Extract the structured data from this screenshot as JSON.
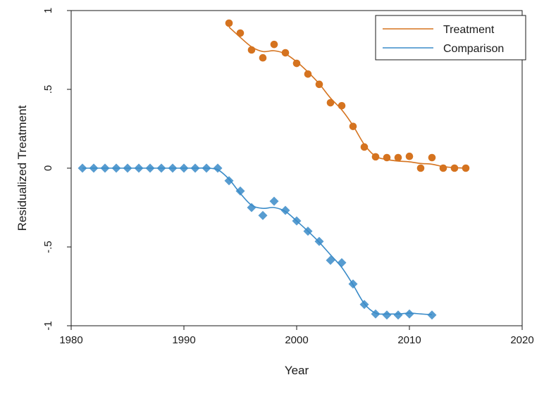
{
  "chart_data": {
    "type": "scatter",
    "xlabel": "Year",
    "ylabel": "Residualized Treatment",
    "xlim": [
      1980,
      2020
    ],
    "ylim": [
      -1,
      1
    ],
    "xticks": [
      "1980",
      "1990",
      "2000",
      "2010",
      "2020"
    ],
    "yticks": [
      "1",
      ".5",
      "0",
      "-.5",
      "-1"
    ],
    "legend": {
      "position": "top-right",
      "entries": [
        "Treatment",
        "Comparison"
      ]
    },
    "series": [
      {
        "name": "Treatment",
        "color": "#d5731f",
        "marker": "circle",
        "points": [
          [
            1994,
            0.92
          ],
          [
            1995,
            0.857
          ],
          [
            1996,
            0.75
          ],
          [
            1997,
            0.7
          ],
          [
            1998,
            0.785
          ],
          [
            1999,
            0.732
          ],
          [
            2000,
            0.665
          ],
          [
            2001,
            0.597
          ],
          [
            2002,
            0.532
          ],
          [
            2003,
            0.415
          ],
          [
            2004,
            0.396
          ],
          [
            2005,
            0.265
          ],
          [
            2006,
            0.134
          ],
          [
            2007,
            0.072
          ],
          [
            2008,
            0.067
          ],
          [
            2009,
            0.067
          ],
          [
            2010,
            0.075
          ],
          [
            2011,
            0.0
          ],
          [
            2012,
            0.067
          ],
          [
            2013,
            0.0
          ],
          [
            2014,
            0.0
          ],
          [
            2015,
            0.0
          ]
        ],
        "fit": [
          [
            1994,
            0.895
          ],
          [
            1995,
            0.83
          ],
          [
            1996,
            0.77
          ],
          [
            1997,
            0.74
          ],
          [
            1998,
            0.745
          ],
          [
            1999,
            0.725
          ],
          [
            2000,
            0.675
          ],
          [
            2001,
            0.61
          ],
          [
            2002,
            0.535
          ],
          [
            2003,
            0.445
          ],
          [
            2004,
            0.37
          ],
          [
            2005,
            0.27
          ],
          [
            2006,
            0.15
          ],
          [
            2007,
            0.075
          ],
          [
            2008,
            0.055
          ],
          [
            2009,
            0.045
          ],
          [
            2010,
            0.04
          ],
          [
            2011,
            0.03
          ],
          [
            2012,
            0.025
          ],
          [
            2013,
            0.01
          ],
          [
            2014,
            0.003
          ],
          [
            2015,
            0.0
          ]
        ]
      },
      {
        "name": "Comparison",
        "color": "#3a8bc8",
        "marker": "diamond",
        "points": [
          [
            1981,
            0
          ],
          [
            1982,
            0
          ],
          [
            1983,
            0
          ],
          [
            1984,
            0
          ],
          [
            1985,
            0
          ],
          [
            1986,
            0
          ],
          [
            1987,
            0
          ],
          [
            1988,
            0
          ],
          [
            1989,
            0
          ],
          [
            1990,
            0
          ],
          [
            1991,
            0
          ],
          [
            1992,
            0
          ],
          [
            1993,
            0
          ],
          [
            1994,
            -0.08
          ],
          [
            1995,
            -0.145
          ],
          [
            1996,
            -0.25
          ],
          [
            1997,
            -0.3
          ],
          [
            1998,
            -0.21
          ],
          [
            1999,
            -0.268
          ],
          [
            2000,
            -0.335
          ],
          [
            2001,
            -0.4
          ],
          [
            2002,
            -0.465
          ],
          [
            2003,
            -0.585
          ],
          [
            2004,
            -0.6
          ],
          [
            2005,
            -0.735
          ],
          [
            2006,
            -0.865
          ],
          [
            2007,
            -0.925
          ],
          [
            2008,
            -0.932
          ],
          [
            2009,
            -0.932
          ],
          [
            2010,
            -0.925
          ],
          [
            2012,
            -0.932
          ]
        ],
        "fit": [
          [
            1981,
            0
          ],
          [
            1982,
            0
          ],
          [
            1983,
            0
          ],
          [
            1984,
            0
          ],
          [
            1985,
            0
          ],
          [
            1986,
            0
          ],
          [
            1987,
            0
          ],
          [
            1988,
            0
          ],
          [
            1989,
            0
          ],
          [
            1990,
            0
          ],
          [
            1991,
            0
          ],
          [
            1992,
            0
          ],
          [
            1993,
            -0.01
          ],
          [
            1994,
            -0.07
          ],
          [
            1995,
            -0.16
          ],
          [
            1996,
            -0.235
          ],
          [
            1997,
            -0.255
          ],
          [
            1998,
            -0.25
          ],
          [
            1999,
            -0.275
          ],
          [
            2000,
            -0.335
          ],
          [
            2001,
            -0.4
          ],
          [
            2002,
            -0.47
          ],
          [
            2003,
            -0.55
          ],
          [
            2004,
            -0.63
          ],
          [
            2005,
            -0.74
          ],
          [
            2006,
            -0.86
          ],
          [
            2007,
            -0.92
          ],
          [
            2008,
            -0.925
          ],
          [
            2009,
            -0.925
          ],
          [
            2010,
            -0.92
          ],
          [
            2011,
            -0.925
          ],
          [
            2012,
            -0.93
          ]
        ]
      }
    ]
  }
}
